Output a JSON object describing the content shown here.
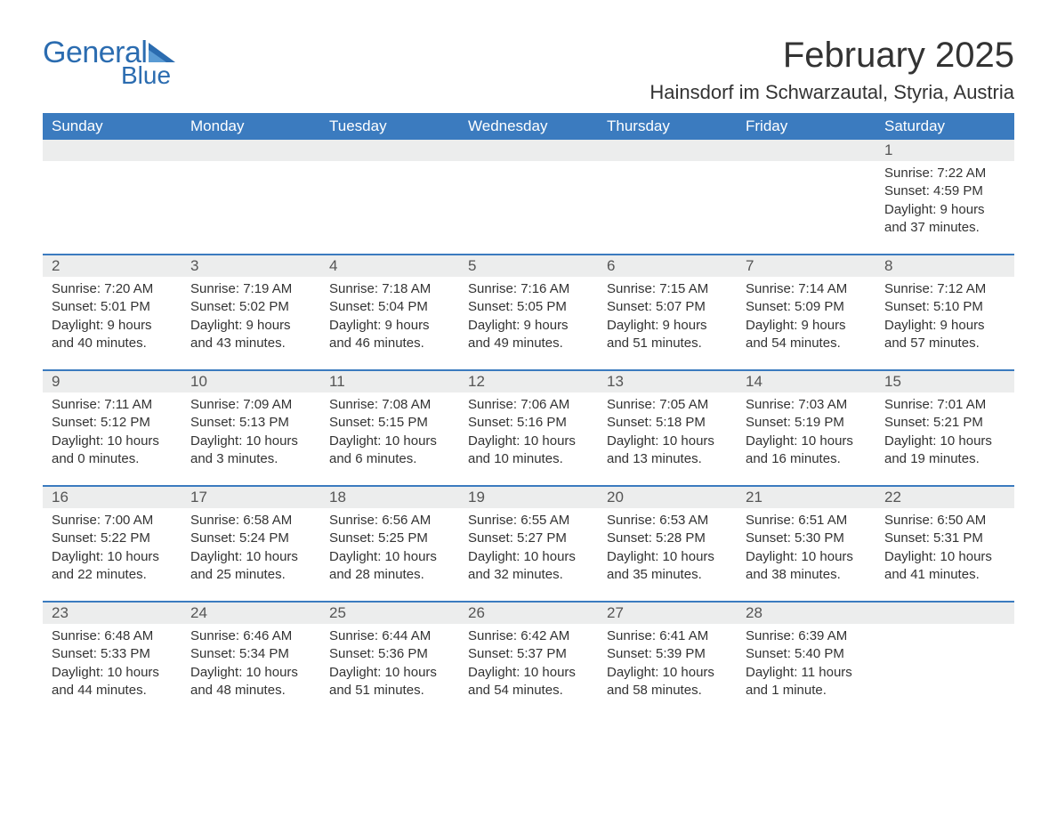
{
  "logo": {
    "text_general": "General",
    "text_blue": "Blue",
    "brand_color": "#2b6cb0"
  },
  "header": {
    "month_title": "February 2025",
    "location": "Hainsdorf im Schwarzautal, Styria, Austria"
  },
  "colors": {
    "header_bg": "#3b7bbf",
    "header_text": "#ffffff",
    "daynum_bg": "#eceded",
    "week_divider": "#3b7bbf",
    "body_text": "#333333",
    "page_bg": "#ffffff"
  },
  "typography": {
    "month_title_fontsize": 40,
    "location_fontsize": 22,
    "dow_fontsize": 17,
    "daynum_fontsize": 17,
    "cell_fontsize": 15
  },
  "days_of_week": [
    "Sunday",
    "Monday",
    "Tuesday",
    "Wednesday",
    "Thursday",
    "Friday",
    "Saturday"
  ],
  "weeks": [
    [
      null,
      null,
      null,
      null,
      null,
      null,
      {
        "n": "1",
        "sunrise": "Sunrise: 7:22 AM",
        "sunset": "Sunset: 4:59 PM",
        "daylight1": "Daylight: 9 hours",
        "daylight2": "and 37 minutes."
      }
    ],
    [
      {
        "n": "2",
        "sunrise": "Sunrise: 7:20 AM",
        "sunset": "Sunset: 5:01 PM",
        "daylight1": "Daylight: 9 hours",
        "daylight2": "and 40 minutes."
      },
      {
        "n": "3",
        "sunrise": "Sunrise: 7:19 AM",
        "sunset": "Sunset: 5:02 PM",
        "daylight1": "Daylight: 9 hours",
        "daylight2": "and 43 minutes."
      },
      {
        "n": "4",
        "sunrise": "Sunrise: 7:18 AM",
        "sunset": "Sunset: 5:04 PM",
        "daylight1": "Daylight: 9 hours",
        "daylight2": "and 46 minutes."
      },
      {
        "n": "5",
        "sunrise": "Sunrise: 7:16 AM",
        "sunset": "Sunset: 5:05 PM",
        "daylight1": "Daylight: 9 hours",
        "daylight2": "and 49 minutes."
      },
      {
        "n": "6",
        "sunrise": "Sunrise: 7:15 AM",
        "sunset": "Sunset: 5:07 PM",
        "daylight1": "Daylight: 9 hours",
        "daylight2": "and 51 minutes."
      },
      {
        "n": "7",
        "sunrise": "Sunrise: 7:14 AM",
        "sunset": "Sunset: 5:09 PM",
        "daylight1": "Daylight: 9 hours",
        "daylight2": "and 54 minutes."
      },
      {
        "n": "8",
        "sunrise": "Sunrise: 7:12 AM",
        "sunset": "Sunset: 5:10 PM",
        "daylight1": "Daylight: 9 hours",
        "daylight2": "and 57 minutes."
      }
    ],
    [
      {
        "n": "9",
        "sunrise": "Sunrise: 7:11 AM",
        "sunset": "Sunset: 5:12 PM",
        "daylight1": "Daylight: 10 hours",
        "daylight2": "and 0 minutes."
      },
      {
        "n": "10",
        "sunrise": "Sunrise: 7:09 AM",
        "sunset": "Sunset: 5:13 PM",
        "daylight1": "Daylight: 10 hours",
        "daylight2": "and 3 minutes."
      },
      {
        "n": "11",
        "sunrise": "Sunrise: 7:08 AM",
        "sunset": "Sunset: 5:15 PM",
        "daylight1": "Daylight: 10 hours",
        "daylight2": "and 6 minutes."
      },
      {
        "n": "12",
        "sunrise": "Sunrise: 7:06 AM",
        "sunset": "Sunset: 5:16 PM",
        "daylight1": "Daylight: 10 hours",
        "daylight2": "and 10 minutes."
      },
      {
        "n": "13",
        "sunrise": "Sunrise: 7:05 AM",
        "sunset": "Sunset: 5:18 PM",
        "daylight1": "Daylight: 10 hours",
        "daylight2": "and 13 minutes."
      },
      {
        "n": "14",
        "sunrise": "Sunrise: 7:03 AM",
        "sunset": "Sunset: 5:19 PM",
        "daylight1": "Daylight: 10 hours",
        "daylight2": "and 16 minutes."
      },
      {
        "n": "15",
        "sunrise": "Sunrise: 7:01 AM",
        "sunset": "Sunset: 5:21 PM",
        "daylight1": "Daylight: 10 hours",
        "daylight2": "and 19 minutes."
      }
    ],
    [
      {
        "n": "16",
        "sunrise": "Sunrise: 7:00 AM",
        "sunset": "Sunset: 5:22 PM",
        "daylight1": "Daylight: 10 hours",
        "daylight2": "and 22 minutes."
      },
      {
        "n": "17",
        "sunrise": "Sunrise: 6:58 AM",
        "sunset": "Sunset: 5:24 PM",
        "daylight1": "Daylight: 10 hours",
        "daylight2": "and 25 minutes."
      },
      {
        "n": "18",
        "sunrise": "Sunrise: 6:56 AM",
        "sunset": "Sunset: 5:25 PM",
        "daylight1": "Daylight: 10 hours",
        "daylight2": "and 28 minutes."
      },
      {
        "n": "19",
        "sunrise": "Sunrise: 6:55 AM",
        "sunset": "Sunset: 5:27 PM",
        "daylight1": "Daylight: 10 hours",
        "daylight2": "and 32 minutes."
      },
      {
        "n": "20",
        "sunrise": "Sunrise: 6:53 AM",
        "sunset": "Sunset: 5:28 PM",
        "daylight1": "Daylight: 10 hours",
        "daylight2": "and 35 minutes."
      },
      {
        "n": "21",
        "sunrise": "Sunrise: 6:51 AM",
        "sunset": "Sunset: 5:30 PM",
        "daylight1": "Daylight: 10 hours",
        "daylight2": "and 38 minutes."
      },
      {
        "n": "22",
        "sunrise": "Sunrise: 6:50 AM",
        "sunset": "Sunset: 5:31 PM",
        "daylight1": "Daylight: 10 hours",
        "daylight2": "and 41 minutes."
      }
    ],
    [
      {
        "n": "23",
        "sunrise": "Sunrise: 6:48 AM",
        "sunset": "Sunset: 5:33 PM",
        "daylight1": "Daylight: 10 hours",
        "daylight2": "and 44 minutes."
      },
      {
        "n": "24",
        "sunrise": "Sunrise: 6:46 AM",
        "sunset": "Sunset: 5:34 PM",
        "daylight1": "Daylight: 10 hours",
        "daylight2": "and 48 minutes."
      },
      {
        "n": "25",
        "sunrise": "Sunrise: 6:44 AM",
        "sunset": "Sunset: 5:36 PM",
        "daylight1": "Daylight: 10 hours",
        "daylight2": "and 51 minutes."
      },
      {
        "n": "26",
        "sunrise": "Sunrise: 6:42 AM",
        "sunset": "Sunset: 5:37 PM",
        "daylight1": "Daylight: 10 hours",
        "daylight2": "and 54 minutes."
      },
      {
        "n": "27",
        "sunrise": "Sunrise: 6:41 AM",
        "sunset": "Sunset: 5:39 PM",
        "daylight1": "Daylight: 10 hours",
        "daylight2": "and 58 minutes."
      },
      {
        "n": "28",
        "sunrise": "Sunrise: 6:39 AM",
        "sunset": "Sunset: 5:40 PM",
        "daylight1": "Daylight: 11 hours",
        "daylight2": "and 1 minute."
      },
      null
    ]
  ]
}
